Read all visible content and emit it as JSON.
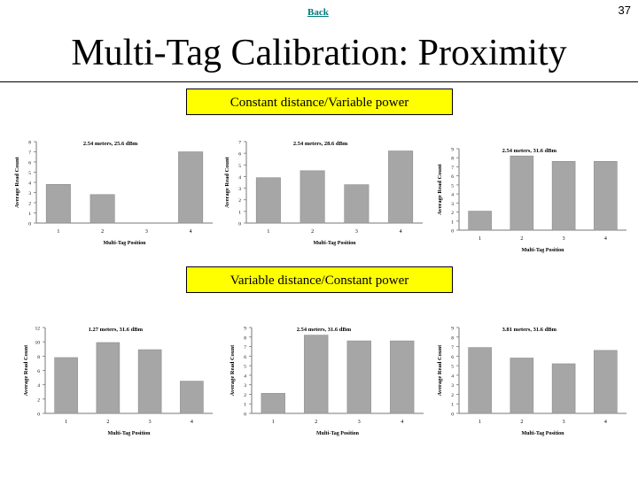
{
  "header": {
    "back_label": "Back",
    "page_number": "37",
    "title": "Multi-Tag Calibration: Proximity"
  },
  "sections": {
    "top_label": "Constant distance/Variable power",
    "bottom_label": "Variable distance/Constant power"
  },
  "colors": {
    "bar": "#a6a6a6",
    "bar_edge": "#8c8c8c",
    "banner": "#ffff00",
    "link": "#007a7a"
  },
  "chart_data": [
    {
      "type": "bar",
      "title": "2.54 meters, 25.6 dBm",
      "xlabel": "Multi-Tag Position",
      "ylabel": "Average Read Count",
      "categories": [
        "1",
        "2",
        "3",
        "4"
      ],
      "values": [
        3.8,
        2.8,
        0,
        7.0
      ],
      "ylim": [
        0,
        8
      ],
      "yticks": [
        "0",
        "1",
        "2",
        "3",
        "4",
        "5",
        "6",
        "7",
        "8"
      ]
    },
    {
      "type": "bar",
      "title": "2.54 meters, 28.6 dBm",
      "xlabel": "Multi-Tag Position",
      "ylabel": "Average Read Count",
      "categories": [
        "1",
        "2",
        "3",
        "4"
      ],
      "values": [
        3.9,
        4.5,
        3.3,
        6.2
      ],
      "ylim": [
        0,
        7
      ],
      "yticks": [
        "0",
        "1",
        "2",
        "3",
        "4",
        "5",
        "6",
        "7"
      ]
    },
    {
      "type": "bar",
      "title": "2.54 meters, 31.6 dBm",
      "xlabel": "Multi-Tag Position",
      "ylabel": "Average Read Count",
      "categories": [
        "1",
        "2",
        "3",
        "4"
      ],
      "values": [
        2.1,
        8.2,
        7.6,
        7.6
      ],
      "ylim": [
        0,
        9
      ],
      "yticks": [
        "0",
        "1",
        "2",
        "3",
        "4",
        "5",
        "6",
        "7",
        "8",
        "9"
      ]
    },
    {
      "type": "bar",
      "title": "1.27 meters, 31.6 dBm",
      "xlabel": "Multi-Tag Position",
      "ylabel": "Average Read Count",
      "categories": [
        "1",
        "2",
        "3",
        "4"
      ],
      "values": [
        7.8,
        9.9,
        8.9,
        4.5
      ],
      "ylim": [
        0,
        12
      ],
      "yticks": [
        "0",
        "2",
        "4",
        "6",
        "8",
        "10",
        "12"
      ]
    },
    {
      "type": "bar",
      "title": "2.54 meters, 31.6 dBm",
      "xlabel": "Multi-Tag Position",
      "ylabel": "Average Read Count",
      "categories": [
        "1",
        "2",
        "3",
        "4"
      ],
      "values": [
        2.1,
        8.2,
        7.6,
        7.6
      ],
      "ylim": [
        0,
        9
      ],
      "yticks": [
        "0",
        "1",
        "2",
        "3",
        "4",
        "5",
        "6",
        "7",
        "8",
        "9"
      ]
    },
    {
      "type": "bar",
      "title": "3.81 meters, 31.6 dBm",
      "xlabel": "Multi-Tag Position",
      "ylabel": "Average Read Count",
      "categories": [
        "1",
        "2",
        "3",
        "4"
      ],
      "values": [
        6.9,
        5.8,
        5.2,
        6.6
      ],
      "ylim": [
        0,
        9
      ],
      "yticks": [
        "0",
        "1",
        "2",
        "3",
        "4",
        "5",
        "6",
        "7",
        "8",
        "9"
      ]
    }
  ]
}
